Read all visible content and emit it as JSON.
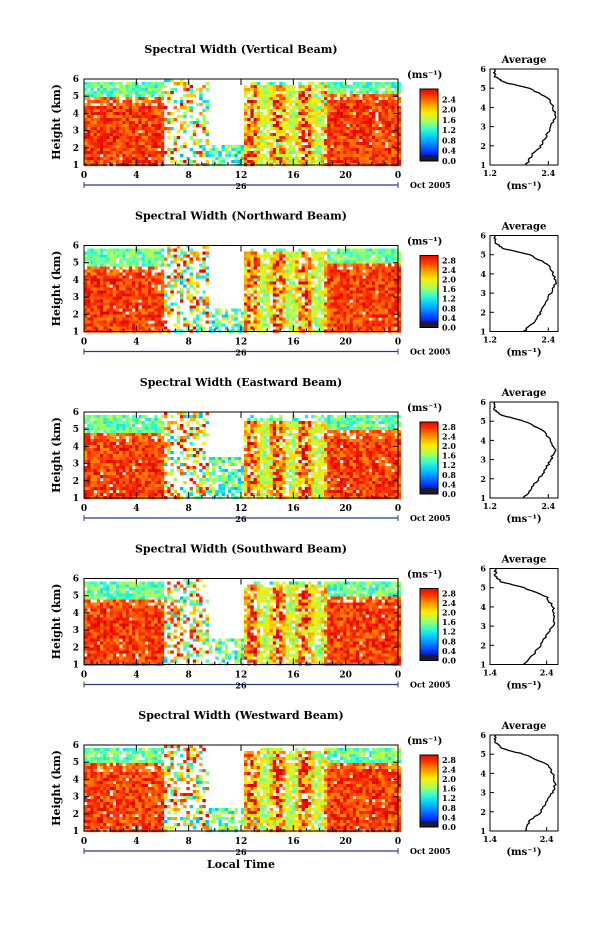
{
  "figure": {
    "x_axis_title": "Local Time",
    "date_label": "Oct 2005",
    "day_label": "26",
    "unit_label": "(ms⁻¹)",
    "average_title": "Average"
  },
  "chart_data": [
    {
      "type": "heatmap",
      "title": "Spectral Width (Vertical Beam)",
      "ylabel": "Height (km)",
      "x_ticks": [
        "0",
        "4",
        "8",
        "12",
        "16",
        "20",
        "0"
      ],
      "y_ticks": [
        "1",
        "2",
        "3",
        "4",
        "5",
        "6"
      ],
      "xlim": [
        0,
        24
      ],
      "ylim": [
        1,
        6
      ],
      "colorbar": {
        "ticks": [
          "0.0",
          "0.4",
          "0.8",
          "1.2",
          "1.6",
          "2.0",
          "2.4"
        ],
        "range": [
          0,
          2.8
        ]
      },
      "regimes": [
        {
          "hours": [
            0,
            6
          ],
          "top_km": 4.6,
          "level": "high"
        },
        {
          "hours": [
            6,
            9.5
          ],
          "top_km": 6.0,
          "level": "mixed"
        },
        {
          "hours": [
            9.5,
            12
          ],
          "top_km": 2.3,
          "level": "low"
        },
        {
          "hours": [
            12,
            18.5
          ],
          "top_km": 5.8,
          "level": "mixed-high"
        },
        {
          "hours": [
            18.5,
            24
          ],
          "top_km": 4.8,
          "level": "high"
        }
      ],
      "average": {
        "x_ticks": [
          "1.2",
          "2.4"
        ],
        "xlim": [
          1.2,
          2.6
        ],
        "heights": [
          1.0,
          1.5,
          2.0,
          2.5,
          3.0,
          3.5,
          4.0,
          4.5,
          5.0,
          5.3,
          5.6,
          6.0
        ],
        "values": [
          1.95,
          2.05,
          2.25,
          2.35,
          2.45,
          2.55,
          2.5,
          2.4,
          2.0,
          1.5,
          1.3,
          1.3
        ]
      }
    },
    {
      "type": "heatmap",
      "title": "Spectral Width (Northward Beam)",
      "ylabel": "Height (km)",
      "x_ticks": [
        "0",
        "4",
        "8",
        "12",
        "16",
        "20",
        "0"
      ],
      "y_ticks": [
        "1",
        "2",
        "3",
        "4",
        "5",
        "6"
      ],
      "xlim": [
        0,
        24
      ],
      "ylim": [
        1,
        6
      ],
      "colorbar": {
        "ticks": [
          "0.0",
          "0.4",
          "0.8",
          "1.2",
          "1.6",
          "2.0",
          "2.4",
          "2.8"
        ],
        "range": [
          0,
          3.0
        ]
      },
      "regimes": [
        {
          "hours": [
            0,
            6
          ],
          "top_km": 4.5,
          "level": "high"
        },
        {
          "hours": [
            6,
            9.5
          ],
          "top_km": 6.0,
          "level": "mixed"
        },
        {
          "hours": [
            9.5,
            12
          ],
          "top_km": 2.5,
          "level": "low"
        },
        {
          "hours": [
            12,
            18.5
          ],
          "top_km": 5.7,
          "level": "mixed-high"
        },
        {
          "hours": [
            18.5,
            24
          ],
          "top_km": 4.7,
          "level": "high"
        }
      ],
      "average": {
        "x_ticks": [
          "1.2",
          "2.4"
        ],
        "xlim": [
          1.2,
          2.6
        ],
        "heights": [
          1.0,
          1.5,
          2.0,
          2.5,
          3.0,
          3.5,
          4.0,
          4.5,
          5.0,
          5.3,
          5.6,
          6.0
        ],
        "values": [
          1.9,
          2.1,
          2.25,
          2.35,
          2.45,
          2.55,
          2.5,
          2.4,
          2.0,
          1.5,
          1.3,
          1.3
        ]
      }
    },
    {
      "type": "heatmap",
      "title": "Spectral Width (Eastward Beam)",
      "ylabel": "Height (km)",
      "x_ticks": [
        "0",
        "4",
        "8",
        "12",
        "16",
        "20",
        "0"
      ],
      "y_ticks": [
        "1",
        "2",
        "3",
        "4",
        "5",
        "6"
      ],
      "xlim": [
        0,
        24
      ],
      "ylim": [
        1,
        6
      ],
      "colorbar": {
        "ticks": [
          "0.0",
          "0.4",
          "0.8",
          "1.2",
          "1.6",
          "2.0",
          "2.4",
          "2.8"
        ],
        "range": [
          0,
          3.0
        ]
      },
      "regimes": [
        {
          "hours": [
            0,
            6
          ],
          "top_km": 4.5,
          "level": "high"
        },
        {
          "hours": [
            6,
            9.5
          ],
          "top_km": 6.0,
          "level": "mixed"
        },
        {
          "hours": [
            9.5,
            12
          ],
          "top_km": 3.5,
          "level": "low"
        },
        {
          "hours": [
            12,
            18.5
          ],
          "top_km": 5.6,
          "level": "mixed-high"
        },
        {
          "hours": [
            18.5,
            24
          ],
          "top_km": 4.6,
          "level": "high"
        }
      ],
      "average": {
        "x_ticks": [
          "1.2",
          "2.4"
        ],
        "xlim": [
          1.2,
          2.6
        ],
        "heights": [
          1.0,
          1.5,
          2.0,
          2.5,
          3.0,
          3.5,
          4.0,
          4.5,
          5.0,
          5.3,
          5.6,
          6.0
        ],
        "values": [
          1.9,
          2.05,
          2.2,
          2.35,
          2.45,
          2.55,
          2.45,
          2.3,
          1.9,
          1.45,
          1.3,
          1.3
        ]
      }
    },
    {
      "type": "heatmap",
      "title": "Spectral Width (Southward Beam)",
      "ylabel": "Height (km)",
      "x_ticks": [
        "0",
        "4",
        "8",
        "12",
        "16",
        "20",
        "0"
      ],
      "y_ticks": [
        "1",
        "2",
        "3",
        "4",
        "5",
        "6"
      ],
      "xlim": [
        0,
        24
      ],
      "ylim": [
        1,
        6
      ],
      "colorbar": {
        "ticks": [
          "0.0",
          "0.4",
          "0.8",
          "1.2",
          "1.6",
          "2.0",
          "2.4",
          "2.8"
        ],
        "range": [
          0,
          3.0
        ]
      },
      "regimes": [
        {
          "hours": [
            0,
            6
          ],
          "top_km": 4.5,
          "level": "high"
        },
        {
          "hours": [
            6,
            9.5
          ],
          "top_km": 6.0,
          "level": "mixed"
        },
        {
          "hours": [
            9.5,
            12
          ],
          "top_km": 2.6,
          "level": "low"
        },
        {
          "hours": [
            12,
            18.5
          ],
          "top_km": 5.8,
          "level": "mixed-high"
        },
        {
          "hours": [
            18.5,
            24
          ],
          "top_km": 4.7,
          "level": "high"
        }
      ],
      "average": {
        "x_ticks": [
          "1.4",
          "2.4"
        ],
        "xlim": [
          1.4,
          2.6
        ],
        "heights": [
          1.0,
          1.5,
          2.0,
          2.5,
          3.0,
          3.5,
          4.0,
          4.5,
          5.0,
          5.3,
          5.6,
          6.0
        ],
        "values": [
          2.0,
          2.15,
          2.3,
          2.4,
          2.5,
          2.55,
          2.5,
          2.4,
          2.0,
          1.6,
          1.5,
          1.5
        ]
      }
    },
    {
      "type": "heatmap",
      "title": "Spectral Width (Westward Beam)",
      "ylabel": "Height (km)",
      "x_ticks": [
        "0",
        "4",
        "8",
        "12",
        "16",
        "20",
        "0"
      ],
      "y_ticks": [
        "1",
        "2",
        "3",
        "4",
        "5",
        "6"
      ],
      "xlim": [
        0,
        24
      ],
      "ylim": [
        1,
        6
      ],
      "colorbar": {
        "ticks": [
          "0.0",
          "0.4",
          "0.8",
          "1.2",
          "1.6",
          "2.0",
          "2.4",
          "2.8"
        ],
        "range": [
          0,
          3.0
        ]
      },
      "regimes": [
        {
          "hours": [
            0,
            6
          ],
          "top_km": 4.6,
          "level": "high"
        },
        {
          "hours": [
            6,
            9.5
          ],
          "top_km": 6.0,
          "level": "mixed"
        },
        {
          "hours": [
            9.5,
            12
          ],
          "top_km": 2.4,
          "level": "low"
        },
        {
          "hours": [
            12,
            18.5
          ],
          "top_km": 5.7,
          "level": "mixed-high"
        },
        {
          "hours": [
            18.5,
            24
          ],
          "top_km": 4.7,
          "level": "high"
        }
      ],
      "average": {
        "x_ticks": [
          "1.4",
          "2.4"
        ],
        "xlim": [
          1.4,
          2.6
        ],
        "heights": [
          1.0,
          1.5,
          2.0,
          2.5,
          3.0,
          3.5,
          4.0,
          4.5,
          5.0,
          5.3,
          5.6,
          6.0
        ],
        "values": [
          2.0,
          2.1,
          2.3,
          2.4,
          2.5,
          2.55,
          2.5,
          2.4,
          2.0,
          1.6,
          1.5,
          1.5
        ]
      }
    }
  ]
}
